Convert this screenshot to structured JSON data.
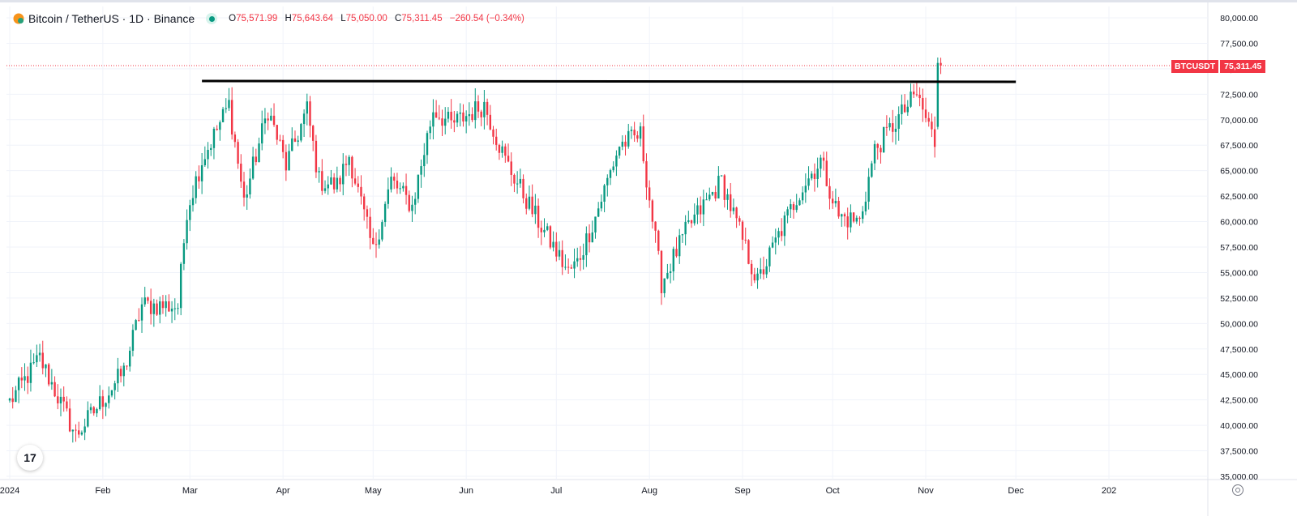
{
  "header": {
    "title": "Bitcoin / TetherUS · 1D · Binance",
    "open_label": "O",
    "open": "75,571.99",
    "high_label": "H",
    "high": "75,643.64",
    "low_label": "L",
    "low": "75,050.00",
    "close_label": "C",
    "close": "75,311.45",
    "change": "−260.54 (−0.34%)"
  },
  "badge": {
    "symbol": "BTCUSDT",
    "price": "75,311.45"
  },
  "logo_text": "17",
  "colors": {
    "up": "#089981",
    "down": "#f23645",
    "grid": "#f0f3fa",
    "line": "#000000"
  },
  "chart_data": {
    "type": "candlestick",
    "y_axis": {
      "range": [
        35000,
        80000
      ],
      "ticks": [
        35000,
        37500,
        40000,
        42500,
        45000,
        47500,
        50000,
        52500,
        55000,
        57500,
        60000,
        62500,
        65000,
        67500,
        70000,
        72500,
        75000,
        77500,
        80000
      ],
      "tick_labels": [
        "35,000.00",
        "37,500.00",
        "40,000.00",
        "42,500.00",
        "45,000.00",
        "47,500.00",
        "50,000.00",
        "52,500.00",
        "55,000.00",
        "57,500.00",
        "60,000.00",
        "62,500.00",
        "65,000.00",
        "67,500.00",
        "70,000.00",
        "72,500.00",
        "75,000.00",
        "77,500.00",
        "80,000.00"
      ]
    },
    "x_axis": {
      "range": [
        "2024-01-01",
        "2025-01-01"
      ],
      "ticks": [
        {
          "label": "2024",
          "date": "2024-01-01"
        },
        {
          "label": "Feb",
          "date": "2024-02-01"
        },
        {
          "label": "Mar",
          "date": "2024-03-01"
        },
        {
          "label": "Apr",
          "date": "2024-04-01"
        },
        {
          "label": "May",
          "date": "2024-05-01"
        },
        {
          "label": "Jun",
          "date": "2024-06-01"
        },
        {
          "label": "Jul",
          "date": "2024-07-01"
        },
        {
          "label": "Aug",
          "date": "2024-08-01"
        },
        {
          "label": "Sep",
          "date": "2024-09-01"
        },
        {
          "label": "Oct",
          "date": "2024-10-01"
        },
        {
          "label": "Nov",
          "date": "2024-11-01"
        },
        {
          "label": "Dec",
          "date": "2024-12-01"
        },
        {
          "label": "202",
          "date": "2025-01-01"
        }
      ]
    },
    "resistance_line": {
      "from_date": "2024-03-05",
      "to_date": "2024-12-01",
      "value": 73800
    },
    "last_price": 75311.45,
    "anchors": [
      [
        "2024-01-01",
        42300
      ],
      [
        "2024-01-11",
        46600
      ],
      [
        "2024-01-23",
        39000
      ],
      [
        "2024-02-08",
        45300
      ],
      [
        "2024-02-14",
        51800
      ],
      [
        "2024-02-26",
        51700
      ],
      [
        "2024-02-29",
        61200
      ],
      [
        "2024-03-05",
        66000
      ],
      [
        "2024-03-14",
        71500
      ],
      [
        "2024-03-19",
        62000
      ],
      [
        "2024-03-27",
        71000
      ],
      [
        "2024-04-02",
        65500
      ],
      [
        "2024-04-09",
        71000
      ],
      [
        "2024-04-13",
        64000
      ],
      [
        "2024-04-19",
        63500
      ],
      [
        "2024-04-23",
        66500
      ],
      [
        "2024-05-01",
        57000
      ],
      [
        "2024-05-07",
        64000
      ],
      [
        "2024-05-14",
        61500
      ],
      [
        "2024-05-21",
        71000
      ],
      [
        "2024-05-27",
        69500
      ],
      [
        "2024-06-07",
        71500
      ],
      [
        "2024-06-14",
        66000
      ],
      [
        "2024-06-24",
        60500
      ],
      [
        "2024-07-05",
        55000
      ],
      [
        "2024-07-08",
        56000
      ],
      [
        "2024-07-14",
        60500
      ],
      [
        "2024-07-22",
        67500
      ],
      [
        "2024-07-29",
        68500
      ],
      [
        "2024-08-05",
        54000
      ],
      [
        "2024-08-14",
        59500
      ],
      [
        "2024-08-25",
        64000
      ],
      [
        "2024-09-06",
        54000
      ],
      [
        "2024-09-12",
        58000
      ],
      [
        "2024-09-20",
        63000
      ],
      [
        "2024-09-27",
        66000
      ],
      [
        "2024-10-03",
        60500
      ],
      [
        "2024-10-10",
        60000
      ],
      [
        "2024-10-15",
        67000
      ],
      [
        "2024-10-20",
        69000
      ],
      [
        "2024-10-29",
        72500
      ],
      [
        "2024-11-04",
        67800
      ],
      [
        "2024-11-06",
        75300
      ]
    ]
  }
}
